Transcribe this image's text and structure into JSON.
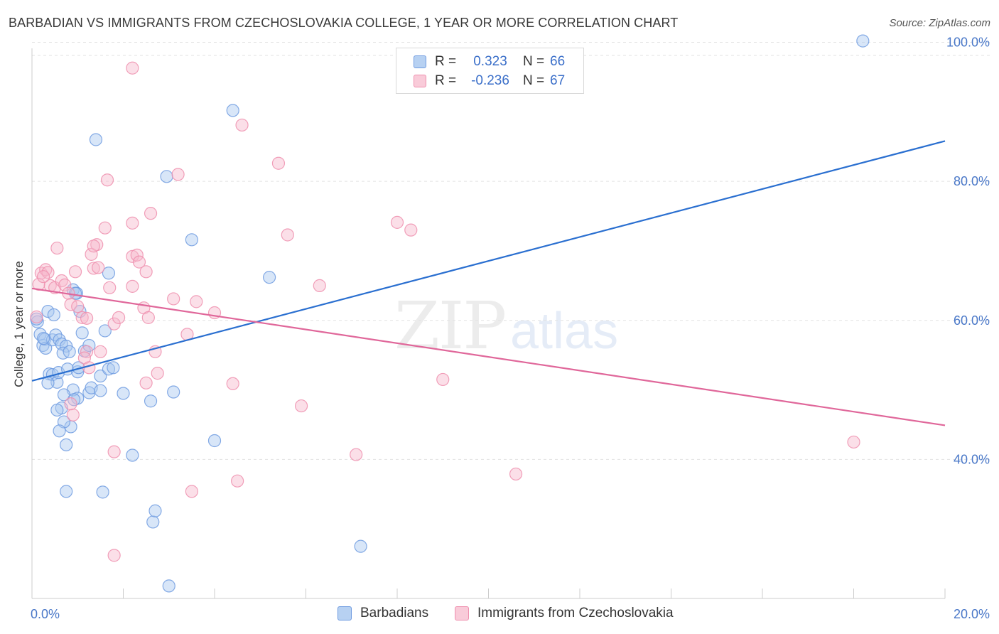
{
  "title": "BARBADIAN VS IMMIGRANTS FROM CZECHOSLOVAKIA COLLEGE, 1 YEAR OR MORE CORRELATION CHART",
  "source": "Source: ZipAtlas.com",
  "watermark": {
    "zip": "ZIP",
    "atlas": "atlas"
  },
  "legend": {
    "rows": [
      {
        "r_label": "R =",
        "r_value": "0.323",
        "n_label": "N =",
        "n_value": "66"
      },
      {
        "r_label": "R =",
        "r_value": "-0.236",
        "n_label": "N =",
        "n_value": "67"
      }
    ]
  },
  "bottom_legend": [
    "Barbadians",
    "Immigrants from Czechoslovakia"
  ],
  "colors": {
    "blue_fill": "#a9c8f0",
    "blue_stroke": "#6f9be0",
    "blue_line": "#2a6fd0",
    "pink_fill": "#f6b9cc",
    "pink_stroke": "#ef8fae",
    "pink_line": "#e0679a",
    "tick_text": "#4a78c8",
    "grid": "#e2e2e2"
  },
  "chart_data": {
    "type": "scatter",
    "title": "BARBADIAN VS IMMIGRANTS FROM CZECHOSLOVAKIA COLLEGE, 1 YEAR OR MORE CORRELATION CHART",
    "xlabel": "",
    "ylabel": "College, 1 year or more",
    "xlim": [
      0,
      20
    ],
    "ylim": [
      20,
      102
    ],
    "x_tick_labels": [
      {
        "value": 0,
        "label": "0.0%"
      },
      {
        "value": 20,
        "label": "20.0%"
      }
    ],
    "y_tick_labels": [
      {
        "value": 40,
        "label": "40.0%"
      },
      {
        "value": 60,
        "label": "60.0%"
      },
      {
        "value": 80,
        "label": "80.0%"
      },
      {
        "value": 100,
        "label": "100.0%"
      }
    ],
    "x_minor_ticks": [
      2,
      4,
      6,
      8,
      10,
      12,
      14,
      16,
      18
    ],
    "grid_y": [
      40,
      60,
      80,
      100
    ],
    "series": [
      {
        "name": "Barbadians",
        "color": "#6f9be0",
        "points": [
          [
            0.12,
            59.8
          ],
          [
            0.18,
            58
          ],
          [
            0.24,
            56.4
          ],
          [
            0.28,
            57.3
          ],
          [
            0.3,
            56
          ],
          [
            0.1,
            60.2
          ],
          [
            0.35,
            61.3
          ],
          [
            0.45,
            57.2
          ],
          [
            0.52,
            57.9
          ],
          [
            0.6,
            57.2
          ],
          [
            0.65,
            56.6
          ],
          [
            0.75,
            56.3
          ],
          [
            0.48,
            60.8
          ],
          [
            0.38,
            52.3
          ],
          [
            0.45,
            52.2
          ],
          [
            0.55,
            51.1
          ],
          [
            0.35,
            51
          ],
          [
            0.58,
            52.5
          ],
          [
            0.68,
            55.3
          ],
          [
            0.78,
            53
          ],
          [
            0.82,
            55.5
          ],
          [
            0.9,
            64.4
          ],
          [
            0.98,
            63.9
          ],
          [
            1.05,
            61.3
          ],
          [
            1.15,
            55.6
          ],
          [
            1.0,
            52.6
          ],
          [
            1.02,
            53.2
          ],
          [
            0.9,
            50
          ],
          [
            1.0,
            48.8
          ],
          [
            1.25,
            49.6
          ],
          [
            1.3,
            50.3
          ],
          [
            1.5,
            52
          ],
          [
            1.5,
            49.9
          ],
          [
            0.7,
            49.3
          ],
          [
            0.65,
            47.4
          ],
          [
            0.55,
            47.1
          ],
          [
            0.92,
            48.6
          ],
          [
            0.85,
            44.7
          ],
          [
            0.7,
            45.4
          ],
          [
            0.75,
            42.1
          ],
          [
            0.6,
            44.1
          ],
          [
            1.1,
            58.2
          ],
          [
            1.6,
            58.5
          ],
          [
            1.68,
            66.8
          ],
          [
            1.68,
            53
          ],
          [
            1.78,
            53.2
          ],
          [
            2.6,
            48.4
          ],
          [
            2.2,
            40.6
          ],
          [
            1.4,
            86
          ],
          [
            2.95,
            80.7
          ],
          [
            3.5,
            71.6
          ],
          [
            4.4,
            90.2
          ],
          [
            5.2,
            66.2
          ],
          [
            4.0,
            42.7
          ],
          [
            3.1,
            49.7
          ],
          [
            2.65,
            31
          ],
          [
            2.7,
            32.6
          ],
          [
            1.55,
            35.3
          ],
          [
            0.75,
            35.4
          ],
          [
            3.0,
            21.8
          ],
          [
            7.2,
            27.5
          ],
          [
            18.2,
            100.2
          ],
          [
            0.95,
            63.9
          ],
          [
            1.25,
            56.4
          ],
          [
            2.0,
            49.5
          ],
          [
            0.25,
            57.4
          ]
        ]
      },
      {
        "name": "Immigrants from Czechoslovakia",
        "color": "#ef8fae",
        "points": [
          [
            0.1,
            60.5
          ],
          [
            0.15,
            65.2
          ],
          [
            0.2,
            66.8
          ],
          [
            0.3,
            67.3
          ],
          [
            0.4,
            65
          ],
          [
            0.5,
            64.7
          ],
          [
            0.55,
            70.4
          ],
          [
            0.65,
            65.7
          ],
          [
            0.72,
            65.1
          ],
          [
            0.8,
            63.9
          ],
          [
            0.85,
            62.3
          ],
          [
            0.95,
            67
          ],
          [
            1.0,
            62
          ],
          [
            1.1,
            60.4
          ],
          [
            1.2,
            60.3
          ],
          [
            1.3,
            69.5
          ],
          [
            1.35,
            67.5
          ],
          [
            1.42,
            70.9
          ],
          [
            1.45,
            67.6
          ],
          [
            1.2,
            55.5
          ],
          [
            1.15,
            54.6
          ],
          [
            1.25,
            53.2
          ],
          [
            1.5,
            55.5
          ],
          [
            1.6,
            73.3
          ],
          [
            1.65,
            80.2
          ],
          [
            1.7,
            64.7
          ],
          [
            1.8,
            59.5
          ],
          [
            1.9,
            60.4
          ],
          [
            2.2,
            64.9
          ],
          [
            2.2,
            69.2
          ],
          [
            2.3,
            69.4
          ],
          [
            2.35,
            68.4
          ],
          [
            2.45,
            61.8
          ],
          [
            2.55,
            60.4
          ],
          [
            2.5,
            67
          ],
          [
            2.2,
            74
          ],
          [
            2.6,
            75.4
          ],
          [
            2.7,
            55.5
          ],
          [
            2.75,
            52.4
          ],
          [
            2.5,
            51
          ],
          [
            3.2,
            81
          ],
          [
            3.1,
            63.1
          ],
          [
            3.4,
            58
          ],
          [
            3.6,
            62.7
          ],
          [
            4.0,
            61.1
          ],
          [
            4.4,
            50.9
          ],
          [
            4.5,
            36.9
          ],
          [
            4.6,
            88.1
          ],
          [
            5.4,
            82.6
          ],
          [
            5.6,
            72.3
          ],
          [
            5.9,
            47.7
          ],
          [
            6.3,
            65
          ],
          [
            7.1,
            40.7
          ],
          [
            8.0,
            74.1
          ],
          [
            8.3,
            73
          ],
          [
            9.0,
            51.5
          ],
          [
            10.6,
            37.9
          ],
          [
            18.0,
            42.5
          ],
          [
            2.2,
            96.3
          ],
          [
            1.8,
            26.2
          ],
          [
            1.8,
            41.1
          ],
          [
            3.5,
            35.4
          ],
          [
            0.9,
            46.4
          ],
          [
            0.85,
            48
          ],
          [
            1.35,
            70.7
          ],
          [
            0.35,
            66.9
          ],
          [
            0.25,
            66.3
          ]
        ]
      }
    ],
    "trend_lines": [
      {
        "series": "Barbadians",
        "x": [
          0,
          20
        ],
        "y": [
          51.3,
          85.8
        ]
      },
      {
        "series": "Immigrants from Czechoslovakia",
        "x": [
          0,
          20
        ],
        "y": [
          64.6,
          44.9
        ]
      }
    ]
  }
}
